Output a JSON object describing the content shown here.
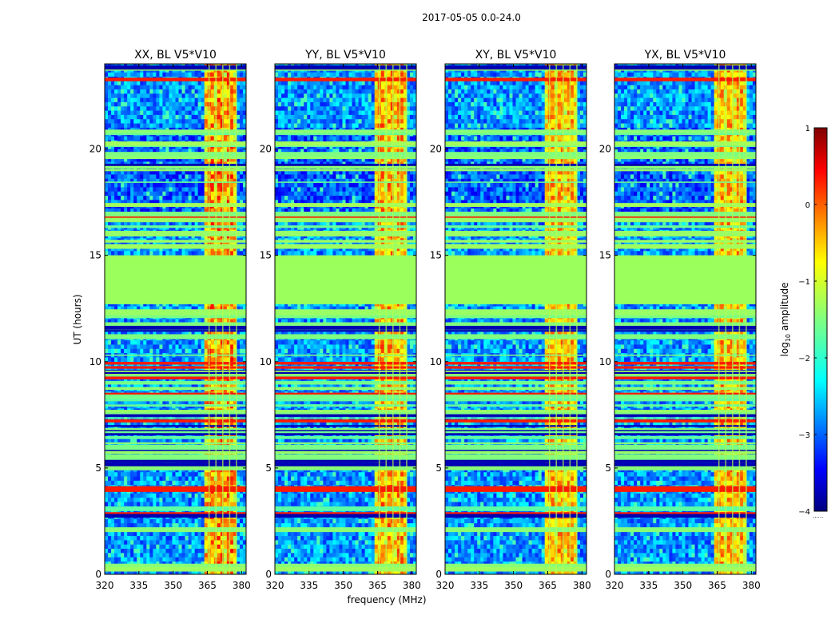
{
  "chart_data": {
    "type": "heatmap",
    "suptitle": "2017-05-05 0.0-24.0",
    "ylabel": "UT (hours)",
    "xlabel": "frequency (MHz)",
    "xlim": [
      320,
      382
    ],
    "ylim": [
      0,
      24
    ],
    "xticks": [
      320,
      335,
      350,
      365,
      380
    ],
    "yticks": [
      0,
      5,
      10,
      15,
      20
    ],
    "panels": [
      {
        "title": "XX, BL V5*V10",
        "pol": "XX",
        "rfi_band_intensity": 0.95
      },
      {
        "title": "YY, BL V5*V10",
        "pol": "YY",
        "rfi_band_intensity": 0.8
      },
      {
        "title": "XY, BL V5*V10",
        "pol": "XY",
        "rfi_band_intensity": 0.72
      },
      {
        "title": "YX, BL V5*V10",
        "pol": "YX",
        "rfi_band_intensity": 0.72
      }
    ],
    "flagged_time_range_hours": [
      12.7,
      15.0
    ],
    "rfi_band_mhz": [
      364,
      378
    ],
    "colorbar": {
      "label": "log10 amplitude",
      "label_base": "log",
      "label_sub": "10",
      "label_rest": " amplitude",
      "range": [
        -4,
        1
      ],
      "ticks": [
        1,
        0,
        -1,
        -2,
        -3,
        -4
      ],
      "tick_labels": [
        "1",
        "0",
        "−1",
        "−2",
        "−3",
        "−4"
      ],
      "colormap": "jet",
      "under_label": "......"
    },
    "colors": {
      "flagged": "#9bff5c",
      "background": "#ffffff"
    }
  }
}
